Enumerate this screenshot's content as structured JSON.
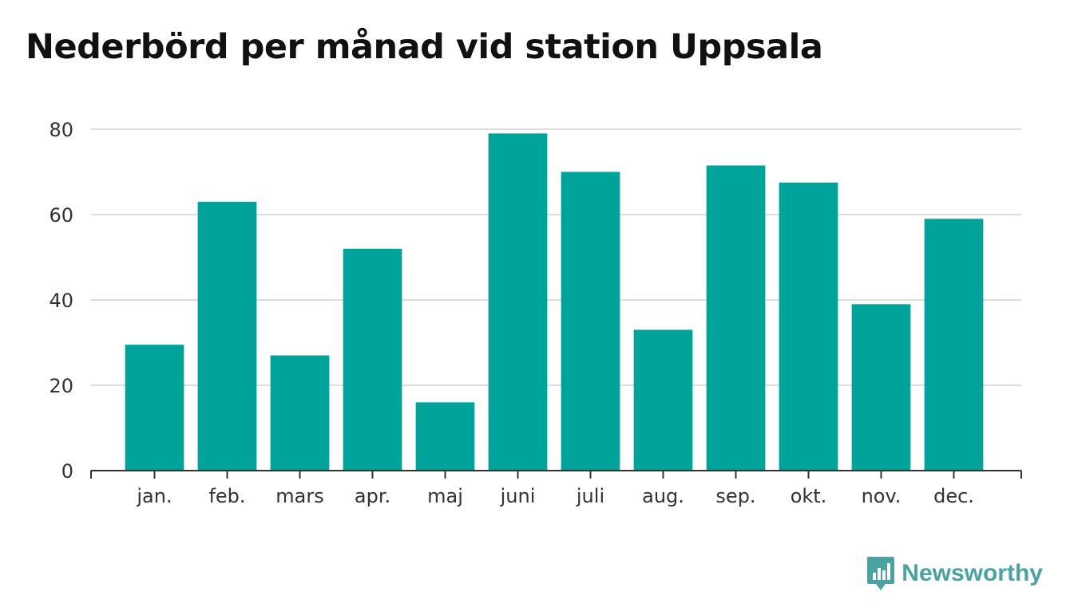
{
  "chart_data": {
    "type": "bar",
    "title": "Nederbörd per månad vid station Uppsala",
    "categories": [
      "jan.",
      "feb.",
      "mars",
      "apr.",
      "maj",
      "juni",
      "juli",
      "aug.",
      "sep.",
      "okt.",
      "nov.",
      "dec."
    ],
    "values": [
      29.5,
      63,
      27,
      52,
      16,
      79,
      70,
      33,
      71.5,
      67.5,
      39,
      59
    ],
    "y_ticks": [
      "0",
      "20",
      "40",
      "60",
      "80"
    ],
    "ylim": [
      0,
      80
    ],
    "grid": true,
    "bar_color": "#00a39a",
    "grid_color": "#dddddd"
  },
  "logo": {
    "name": "Newsworthy",
    "color": "#4aa3a0",
    "icon": "newsworthy-logo-icon"
  }
}
